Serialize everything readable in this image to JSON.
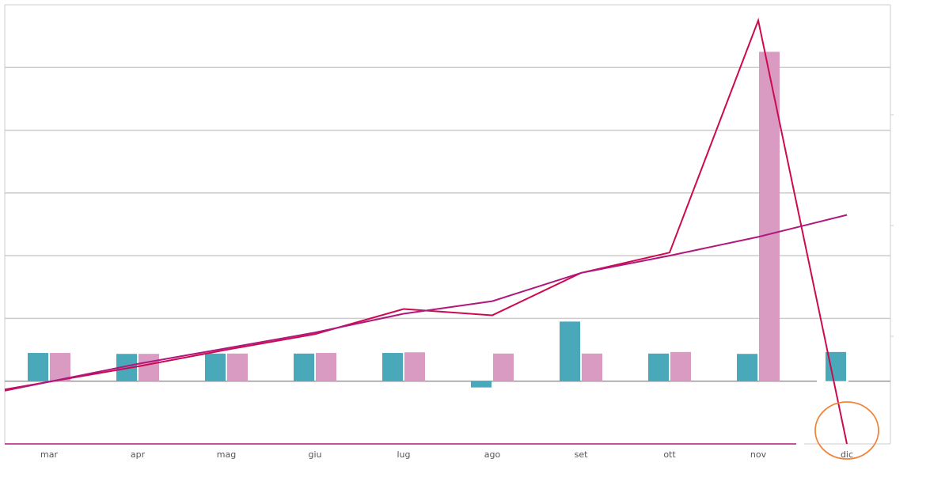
{
  "chart_data": {
    "type": "bar",
    "categories": [
      "mar",
      "apr",
      "mag",
      "giu",
      "lug",
      "ago",
      "set",
      "ott",
      "nov",
      "dic"
    ],
    "ylim": [
      -2,
      12
    ],
    "grid": true,
    "legend": "none",
    "series": [
      {
        "type": "bar",
        "values": [
          0.9,
          0.87,
          0.88,
          0.88,
          0.9,
          -0.2,
          1.9,
          0.88,
          0.87,
          0.93
        ]
      },
      {
        "type": "bar",
        "values": [
          0.9,
          0.87,
          0.88,
          0.9,
          0.92,
          0.88,
          0.88,
          0.93,
          10.5,
          0.0
        ]
      },
      {
        "type": "line",
        "values": [
          -0.02,
          0.47,
          1.0,
          1.5,
          2.3,
          2.1,
          3.45,
          4.1,
          11.5,
          -2.0
        ]
      },
      {
        "type": "line",
        "values": [
          -0.02,
          0.55,
          1.05,
          1.55,
          2.15,
          2.55,
          3.45,
          4.0,
          4.6,
          5.3
        ]
      }
    ],
    "annotations": [
      {
        "type": "circle",
        "category": "dic"
      }
    ]
  },
  "colors": {
    "bar1": "#49a9bb",
    "bar2": "#da9bc3",
    "line1": "#cc0a4f",
    "line2": "#b0187e",
    "grid": "#cccccc",
    "zero": "#9a9a9a",
    "annotation": "#f0853a"
  }
}
